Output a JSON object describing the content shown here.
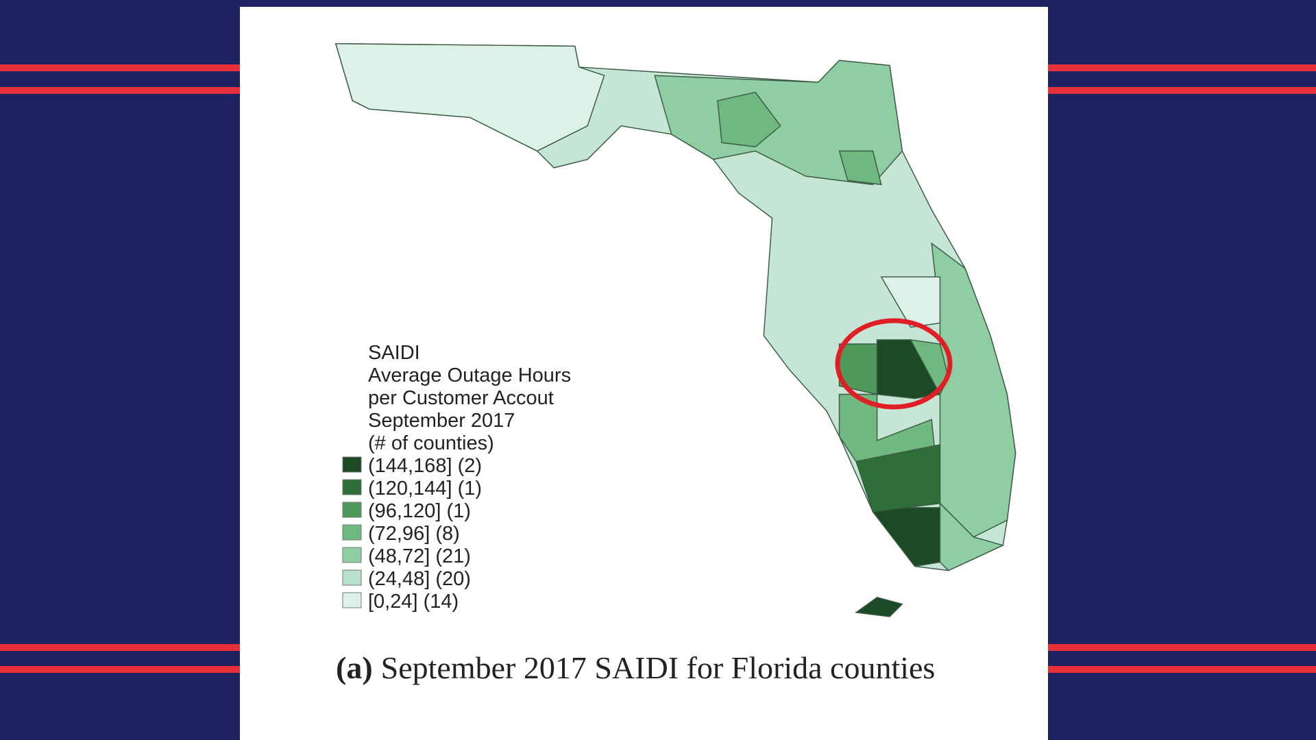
{
  "legend": {
    "title_lines": [
      "SAIDI",
      "Average Outage Hours",
      "per Customer Accout",
      "September 2017",
      "(# of counties)"
    ],
    "items": [
      {
        "label": "(144,168] (2)",
        "color": "#1b4a25"
      },
      {
        "label": "(120,144] (1)",
        "color": "#2e6e38"
      },
      {
        "label": "(96,120] (1)",
        "color": "#4f9a5a"
      },
      {
        "label": "(72,96] (8)",
        "color": "#6fb87f"
      },
      {
        "label": "(48,72] (21)",
        "color": "#8fcda3"
      },
      {
        "label": "(24,48] (20)",
        "color": "#b8e0cb"
      },
      {
        "label": "[0,24] (14)",
        "color": "#ddf1e8"
      }
    ]
  },
  "caption": {
    "label": "(a)",
    "text": "September 2017 SAIDI for Florida counties"
  }
}
